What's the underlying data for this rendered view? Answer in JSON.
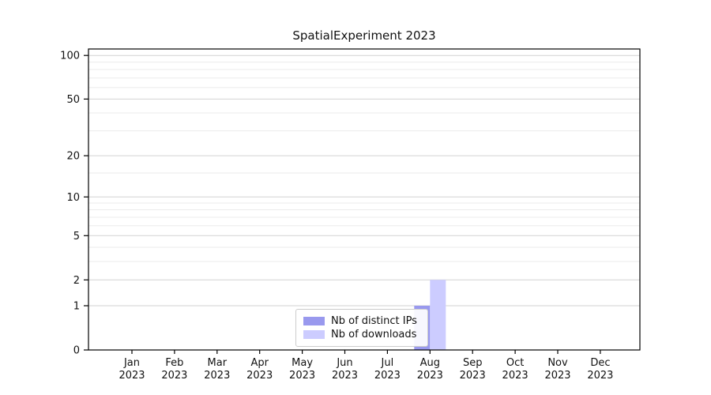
{
  "chart_data": {
    "type": "bar",
    "title": "SpatialExperiment 2023",
    "x": [
      "Jan 2023",
      "Feb 2023",
      "Mar 2023",
      "Apr 2023",
      "May 2023",
      "Jun 2023",
      "Jul 2023",
      "Aug 2023",
      "Sep 2023",
      "Oct 2023",
      "Nov 2023",
      "Dec 2023"
    ],
    "series": [
      {
        "name": "Nb of distinct IPs",
        "color": "#9999ee",
        "values": [
          0,
          0,
          0,
          0,
          0,
          0,
          0,
          1,
          0,
          0,
          0,
          0
        ]
      },
      {
        "name": "Nb of downloads",
        "color": "#ccccff",
        "values": [
          0,
          0,
          0,
          0,
          0,
          0,
          0,
          2,
          0,
          0,
          0,
          0
        ]
      }
    ],
    "yscale": "log1p",
    "y_ticks": [
      0,
      1,
      2,
      5,
      10,
      20,
      50,
      100
    ],
    "y_minor_ticks": [
      3,
      4,
      6,
      7,
      8,
      9,
      15,
      30,
      40,
      60,
      70,
      80,
      90
    ],
    "ylim": [
      0,
      110
    ],
    "grid": true,
    "legend_position": "lower center inside",
    "colors": {
      "grid_major": "#d2d2d2",
      "grid_minor": "#ebebeb",
      "axis": "#000000",
      "background": "#ffffff",
      "text": "#111111"
    }
  }
}
